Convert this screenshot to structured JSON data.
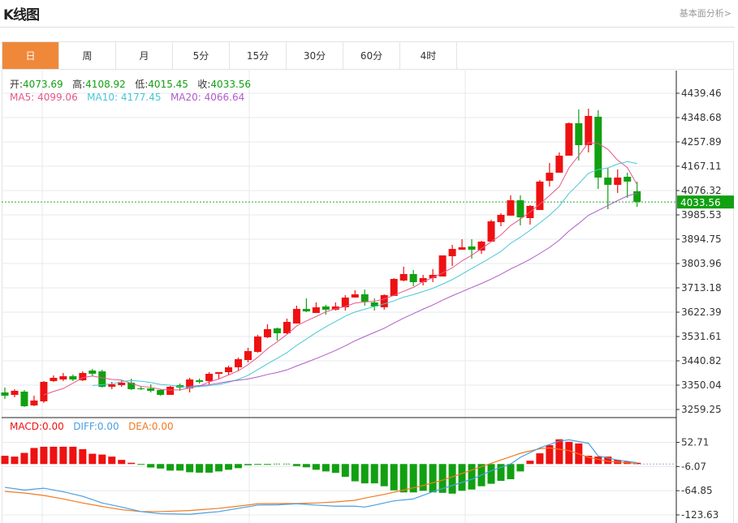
{
  "header": {
    "title": "K线图",
    "link": "基本面分析>"
  },
  "tabs": [
    {
      "label": "日",
      "active": true
    },
    {
      "label": "周"
    },
    {
      "label": "月"
    },
    {
      "label": "5分"
    },
    {
      "label": "15分"
    },
    {
      "label": "30分"
    },
    {
      "label": "60分"
    },
    {
      "label": "4时"
    }
  ],
  "info": {
    "open_label": "开:",
    "open": "4073.69",
    "high_label": "高:",
    "high": "4108.92",
    "low_label": "低:",
    "low": "4015.45",
    "close_label": "收:",
    "close": "4033.56",
    "ma5_label": "MA5:",
    "ma5": "4099.06",
    "ma10_label": "MA10:",
    "ma10": "4177.45",
    "ma20_label": "MA20:",
    "ma20": "4066.64"
  },
  "macd_info": {
    "macd": "MACD:0.00",
    "diff": "DIFF:0.00",
    "dea": "DEA:0.00"
  },
  "colors": {
    "up": "#ee1111",
    "down": "#11a011",
    "ma5": "#e8578a",
    "ma10": "#47c7d5",
    "ma20": "#b05cc8",
    "diff": "#4a9fe0",
    "dea": "#f07b22",
    "tab_active": "#f0883a",
    "last_price_bg": "#11a011"
  },
  "chart_data": [
    {
      "type": "candlestick",
      "y_ticks": [
        "4439.46",
        "4348.68",
        "4257.89",
        "4167.11",
        "4076.32",
        "3985.53",
        "3894.75",
        "3803.96",
        "3713.18",
        "3622.39",
        "3531.61",
        "3440.82",
        "3350.04",
        "3259.25"
      ],
      "ylim": [
        3259.25,
        4439.46
      ],
      "last_price": "4033.56",
      "ma_periods": [
        5,
        10,
        20
      ],
      "ohlc": [
        [
          3322.9,
          3310.8,
          3341.1,
          3298.7
        ],
        [
          3313.8,
          3329.0,
          3335.0,
          3304.7
        ],
        [
          3325.9,
          3271.5,
          3332.0,
          3268.5
        ],
        [
          3274.5,
          3292.7,
          3310.8,
          3271.5
        ],
        [
          3289.6,
          3362.3,
          3365.3,
          3283.6
        ],
        [
          3365.3,
          3377.4,
          3386.4,
          3362.3
        ],
        [
          3371.3,
          3383.4,
          3395.5,
          3365.3
        ],
        [
          3383.4,
          3371.3,
          3389.5,
          3365.3
        ],
        [
          3368.3,
          3395.5,
          3401.6,
          3365.3
        ],
        [
          3404.6,
          3392.5,
          3410.7,
          3383.4
        ],
        [
          3401.6,
          3344.1,
          3407.6,
          3341.1
        ],
        [
          3344.1,
          3353.2,
          3362.3,
          3335.0
        ],
        [
          3350.2,
          3359.2,
          3368.3,
          3344.1
        ],
        [
          3359.2,
          3335.0,
          3374.4,
          3332.0
        ],
        [
          3338.0,
          3335.0,
          3344.1,
          3332.0
        ],
        [
          3338.0,
          3329.0,
          3353.2,
          3322.9
        ],
        [
          3332.0,
          3313.8,
          3335.0,
          3310.8
        ],
        [
          3313.8,
          3344.1,
          3347.1,
          3313.8
        ],
        [
          3350.2,
          3341.1,
          3356.2,
          3329.0
        ],
        [
          3338.0,
          3371.3,
          3377.4,
          3322.9
        ],
        [
          3368.3,
          3362.3,
          3374.4,
          3356.2
        ],
        [
          3365.3,
          3392.5,
          3398.5,
          3353.2
        ],
        [
          3392.5,
          3398.5,
          3398.5,
          3374.4
        ],
        [
          3398.5,
          3416.7,
          3422.8,
          3386.4
        ],
        [
          3416.7,
          3447.0,
          3453.0,
          3404.6
        ],
        [
          3443.9,
          3477.2,
          3489.4,
          3434.9
        ],
        [
          3474.2,
          3531.7,
          3537.8,
          3471.2
        ],
        [
          3528.7,
          3559.0,
          3577.1,
          3525.7
        ],
        [
          3562.0,
          3543.8,
          3565.0,
          3516.6
        ],
        [
          3543.8,
          3586.2,
          3598.3,
          3540.8
        ],
        [
          3580.1,
          3634.6,
          3646.7,
          3580.1
        ],
        [
          3634.6,
          3625.5,
          3673.9,
          3622.5
        ],
        [
          3619.5,
          3640.6,
          3658.8,
          3619.5
        ],
        [
          3643.7,
          3631.6,
          3649.7,
          3613.4
        ],
        [
          3631.6,
          3643.7,
          3658.8,
          3628.5
        ],
        [
          3640.6,
          3677.0,
          3686.0,
          3628.5
        ],
        [
          3677.0,
          3689.1,
          3704.2,
          3677.0
        ],
        [
          3689.1,
          3661.8,
          3707.2,
          3646.7
        ],
        [
          3658.8,
          3643.7,
          3673.9,
          3628.5
        ],
        [
          3640.6,
          3686.0,
          3689.1,
          3631.6
        ],
        [
          3683.0,
          3746.5,
          3749.6,
          3683.0
        ],
        [
          3740.5,
          3764.7,
          3792.0,
          3737.5
        ],
        [
          3764.7,
          3734.5,
          3779.8,
          3719.3
        ],
        [
          3734.5,
          3749.6,
          3761.7,
          3722.3
        ],
        [
          3749.6,
          3761.7,
          3782.9,
          3734.5
        ],
        [
          3755.6,
          3834.3,
          3834.3,
          3755.6
        ],
        [
          3831.3,
          3858.5,
          3873.6,
          3795.0
        ],
        [
          3855.5,
          3864.6,
          3894.8,
          3855.5
        ],
        [
          3867.6,
          3855.5,
          3894.8,
          3822.2
        ],
        [
          3852.5,
          3885.7,
          3888.8,
          3840.4
        ],
        [
          3885.7,
          3961.4,
          3967.5,
          3885.7
        ],
        [
          3958.4,
          3985.6,
          3991.7,
          3943.2
        ],
        [
          3982.6,
          4040.1,
          4058.2,
          3982.6
        ],
        [
          4040.1,
          3976.5,
          4058.2,
          3946.3
        ],
        [
          3973.5,
          4018.9,
          4021.9,
          3949.3
        ],
        [
          4003.8,
          4109.7,
          4115.7,
          4003.8
        ],
        [
          4112.7,
          4143.0,
          4179.3,
          4091.5
        ],
        [
          4143.0,
          4206.5,
          4218.6,
          4143.0
        ],
        [
          4206.5,
          4327.5,
          4330.6,
          4206.5
        ],
        [
          4327.5,
          4245.8,
          4379.0,
          4188.4
        ],
        [
          4245.8,
          4354.8,
          4382.0,
          4218.6
        ],
        [
          4351.8,
          4124.8,
          4376.0,
          4082.4
        ],
        [
          4124.8,
          4097.6,
          4161.1,
          4006.8
        ],
        [
          4097.6,
          4124.8,
          4155.1,
          4067.3
        ],
        [
          4127.8,
          4109.7,
          4143.0,
          4049.2
        ],
        [
          4073.69,
          4033.56,
          4108.92,
          4015.45
        ]
      ]
    },
    {
      "type": "bar+line",
      "y_ticks": [
        "52.71",
        "-6.07",
        "-64.85",
        "-123.63"
      ],
      "ylim": [
        -123.63,
        52.71
      ],
      "histogram": [
        20,
        18,
        27,
        39,
        42,
        42,
        42,
        42,
        36,
        25,
        23,
        18,
        10,
        3,
        -2,
        -8.5,
        -11,
        -16,
        -16,
        -20,
        -21,
        -21,
        -18,
        -14,
        -10,
        -3,
        -2,
        -2,
        0,
        0,
        -5,
        -8,
        -14,
        -18,
        -21.5,
        -31,
        -42,
        -47,
        -47,
        -54,
        -64,
        -69,
        -69,
        -65,
        -69,
        -70,
        -72,
        -65,
        -62,
        -54,
        -48,
        -41,
        -37,
        -18,
        8,
        26,
        46,
        60,
        54,
        50,
        20,
        18,
        18,
        10,
        6,
        3
      ],
      "diff": [
        [
          0,
          -56.8
        ],
        [
          2,
          -63.3
        ],
        [
          4,
          -58.8
        ],
        [
          6,
          -67.3
        ],
        [
          8,
          -78.4
        ],
        [
          10,
          -94.7
        ],
        [
          12,
          -104.5
        ],
        [
          14,
          -115.6
        ],
        [
          16,
          -120.8
        ],
        [
          19,
          -122.1
        ],
        [
          22,
          -115.6
        ],
        [
          24,
          -107.7
        ],
        [
          26,
          -99.9
        ],
        [
          28,
          -99.3
        ],
        [
          30,
          -96.6
        ],
        [
          32,
          -99.9
        ],
        [
          34,
          -102.5
        ],
        [
          36,
          -102.5
        ],
        [
          37,
          -104.5
        ],
        [
          38,
          -99.9
        ],
        [
          40,
          -89.5
        ],
        [
          42,
          -84.9
        ],
        [
          44,
          -67.3
        ],
        [
          46,
          -52.2
        ],
        [
          48,
          -37.2
        ],
        [
          50,
          -16.3
        ],
        [
          52,
          0
        ],
        [
          53,
          16.3
        ],
        [
          55,
          39.2
        ],
        [
          57,
          55.5
        ],
        [
          58,
          58.8
        ],
        [
          60,
          50.3
        ],
        [
          61,
          19.6
        ],
        [
          63,
          9.8
        ],
        [
          65,
          3.3
        ]
      ],
      "dea": [
        [
          0,
          -66.6
        ],
        [
          2,
          -70.5
        ],
        [
          4,
          -76.4
        ],
        [
          6,
          -84.9
        ],
        [
          8,
          -94.7
        ],
        [
          10,
          -103.2
        ],
        [
          12,
          -111
        ],
        [
          14,
          -115.6
        ],
        [
          16,
          -115.6
        ],
        [
          19,
          -113
        ],
        [
          22,
          -107.7
        ],
        [
          24,
          -102.5
        ],
        [
          26,
          -96.6
        ],
        [
          28,
          -96
        ],
        [
          30,
          -96
        ],
        [
          32,
          -94.7
        ],
        [
          34,
          -92.1
        ],
        [
          36,
          -88.2
        ],
        [
          37,
          -82.9
        ],
        [
          39,
          -73.8
        ],
        [
          41,
          -63.3
        ],
        [
          43,
          -52.2
        ],
        [
          45,
          -39.2
        ],
        [
          47,
          -22.9
        ],
        [
          49,
          -6.5
        ],
        [
          51,
          9.8
        ],
        [
          53,
          26.1
        ],
        [
          55,
          37.2
        ],
        [
          56,
          39.2
        ],
        [
          58,
          32.7
        ],
        [
          60,
          16.3
        ],
        [
          62,
          6.5
        ],
        [
          65,
          1.3
        ]
      ]
    }
  ]
}
